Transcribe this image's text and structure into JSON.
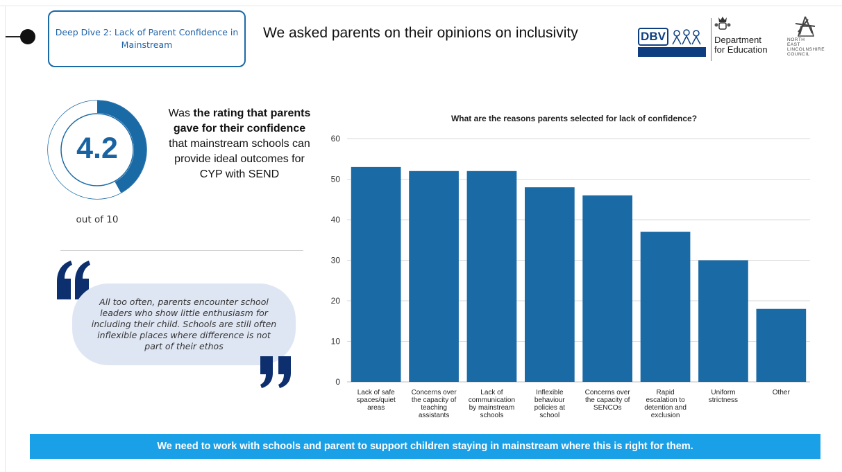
{
  "header": {
    "deep_dive_label": "Deep Dive 2: Lack of Parent Confidence in Mainstream",
    "heading": "We asked parents on their opinions on inclusivity"
  },
  "logos": {
    "dbv": "DBV",
    "dfe_line1": "Department",
    "dfe_line2": "for Education",
    "council_line1": "NORTH",
    "council_line2": "EAST",
    "council_line3": "LINCOLNSHIRE",
    "council_line4": "COUNCIL"
  },
  "rating": {
    "value": "4.2",
    "fraction": 0.42,
    "caption": "out of 10",
    "desc_pre": "Was ",
    "desc_bold": "the rating that parents gave for their confidence",
    "desc_post": " that mainstream schools can provide ideal outcomes for CYP with SEND"
  },
  "quote": {
    "text": "All too often, parents encounter school leaders who show little enthusiasm for including their child. Schools are still often inflexible places where difference is not part of their ethos"
  },
  "banner": {
    "text": "We need to work with schools and parent to support children staying in mainstream where this is right for them."
  },
  "colors": {
    "accent": "#1a6aa6",
    "bar": "#1a6aa6",
    "banner": "#19a0e6",
    "quote_mark": "#0d2f6e",
    "bubble": "#dfe6f3"
  },
  "icons": {
    "connector": "timeline-dot-icon",
    "crest": "royal-crest-icon",
    "quote_open": "open-quote-icon",
    "quote_close": "close-quote-icon"
  },
  "chart_data": {
    "type": "bar",
    "title": "What are the reasons parents selected for lack of confidence?",
    "categories": [
      [
        "Lack of safe",
        "spaces/quiet",
        "areas"
      ],
      [
        "Concerns over",
        "the capacity of",
        "teaching",
        "assistants"
      ],
      [
        "Lack of",
        "communication",
        "by mainstream",
        "schools"
      ],
      [
        "Inflexible",
        "behaviour",
        "policies at",
        "school"
      ],
      [
        "Concerns over",
        "the capacity of",
        "SENCOs"
      ],
      [
        "Rapid",
        "escalation to",
        "detention and",
        "exclusion"
      ],
      [
        "Uniform",
        "strictness"
      ],
      [
        "Other"
      ]
    ],
    "values": [
      53,
      52,
      52,
      48,
      46,
      37,
      30,
      18
    ],
    "yticks": [
      0,
      10,
      20,
      30,
      40,
      50,
      60
    ],
    "ylim": [
      0,
      60
    ],
    "grid": true,
    "legend": "none"
  }
}
